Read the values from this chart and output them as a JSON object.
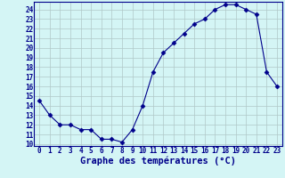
{
  "x": [
    0,
    1,
    2,
    3,
    4,
    5,
    6,
    7,
    8,
    9,
    10,
    11,
    12,
    13,
    14,
    15,
    16,
    17,
    18,
    19,
    20,
    21,
    22,
    23
  ],
  "y": [
    14.5,
    13.0,
    12.0,
    12.0,
    11.5,
    11.5,
    10.5,
    10.5,
    10.2,
    11.5,
    14.0,
    17.5,
    19.5,
    20.5,
    21.5,
    22.5,
    23.0,
    24.0,
    24.5,
    24.5,
    24.0,
    23.5,
    17.5,
    16.0
  ],
  "line_color": "#00008B",
  "marker": "D",
  "marker_size": 2.5,
  "bg_color": "#d4f5f5",
  "grid_color": "#b0c8c8",
  "xlabel": "Graphe des températures (°C)",
  "xlabel_color": "#00008B",
  "tick_color": "#00008B",
  "ylim": [
    9.8,
    24.8
  ],
  "xlim": [
    -0.5,
    23.5
  ],
  "yticks": [
    10,
    11,
    12,
    13,
    14,
    15,
    16,
    17,
    18,
    19,
    20,
    21,
    22,
    23,
    24
  ],
  "xticks": [
    0,
    1,
    2,
    3,
    4,
    5,
    6,
    7,
    8,
    9,
    10,
    11,
    12,
    13,
    14,
    15,
    16,
    17,
    18,
    19,
    20,
    21,
    22,
    23
  ],
  "axis_bg": "#d4f5f5",
  "spine_color": "#00008B",
  "label_fontsize": 7.5,
  "tick_fontsize": 5.5
}
